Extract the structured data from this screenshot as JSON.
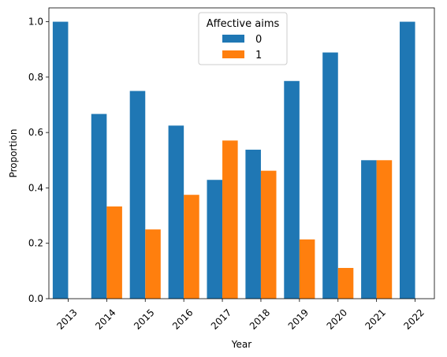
{
  "chart_data": {
    "type": "bar",
    "categories": [
      "2013",
      "2014",
      "2015",
      "2016",
      "2017",
      "2018",
      "2019",
      "2020",
      "2021",
      "2022"
    ],
    "series": [
      {
        "name": "0",
        "values": [
          1.0,
          0.667,
          0.75,
          0.625,
          0.429,
          0.538,
          0.786,
          0.889,
          0.5,
          1.0
        ]
      },
      {
        "name": "1",
        "values": [
          0.0,
          0.333,
          0.25,
          0.375,
          0.571,
          0.462,
          0.214,
          0.111,
          0.5,
          0.0
        ]
      }
    ],
    "colors": [
      "#1f77b4",
      "#ff7f0e"
    ],
    "title": "",
    "xlabel": "Year",
    "ylabel": "Proportion",
    "ylim": [
      0,
      1.05
    ],
    "yticks": [
      0.0,
      0.2,
      0.4,
      0.6,
      0.8,
      1.0
    ],
    "ytick_labels": [
      "0.0",
      "0.2",
      "0.4",
      "0.6",
      "0.8",
      "1.0"
    ],
    "legend": {
      "title": "Affective aims",
      "position": "top-center"
    },
    "grid": false
  }
}
